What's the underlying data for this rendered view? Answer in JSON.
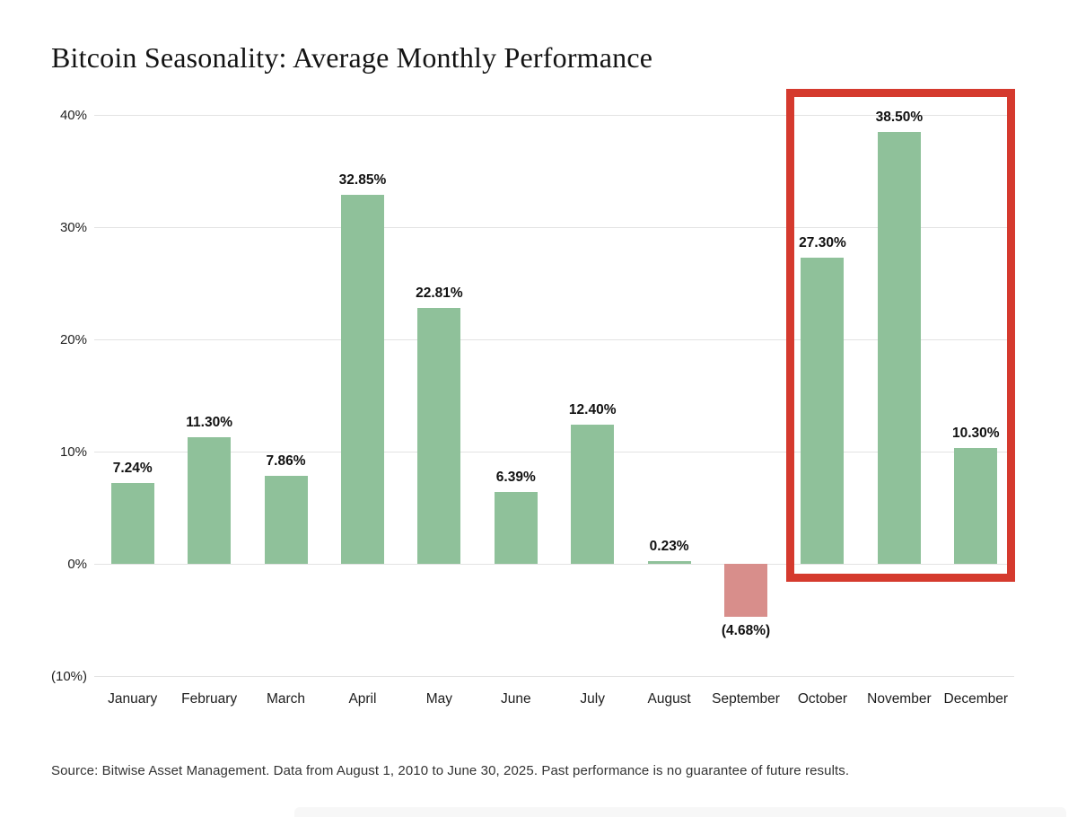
{
  "title": "Bitcoin Seasonality: Average Monthly Performance",
  "source_note": "Source: Bitwise Asset Management. Data from August 1, 2010 to June 30, 2025. Past performance is no guarantee of future results.",
  "colors": {
    "positive_bar": "#8fc19a",
    "negative_bar": "#d88e8b",
    "highlight_box": "#d53a2e",
    "gridline": "#e3e3e3",
    "title_text": "#131313",
    "label_text": "#111111",
    "source_text": "#333333"
  },
  "chart_data": {
    "type": "bar",
    "title": "Bitcoin Seasonality: Average Monthly Performance",
    "xlabel": "",
    "ylabel": "",
    "categories": [
      "January",
      "February",
      "March",
      "April",
      "May",
      "June",
      "July",
      "August",
      "September",
      "October",
      "November",
      "December"
    ],
    "values": [
      7.24,
      11.3,
      7.86,
      32.85,
      22.81,
      6.39,
      12.4,
      0.23,
      -4.68,
      27.3,
      38.5,
      10.3
    ],
    "value_labels": [
      "7.24%",
      "11.30%",
      "7.86%",
      "32.85%",
      "22.81%",
      "6.39%",
      "12.40%",
      "0.23%",
      "(4.68%)",
      "27.30%",
      "38.50%",
      "10.30%"
    ],
    "ylim": [
      -10,
      40
    ],
    "yticks": [
      40,
      30,
      20,
      10,
      0,
      -10
    ],
    "ytick_labels": [
      "40%",
      "30%",
      "20%",
      "10%",
      "0%",
      "(10%)"
    ],
    "grid": true,
    "legend": false,
    "highlight": {
      "months": [
        "October",
        "November",
        "December"
      ],
      "style": "red-outline-box"
    }
  }
}
